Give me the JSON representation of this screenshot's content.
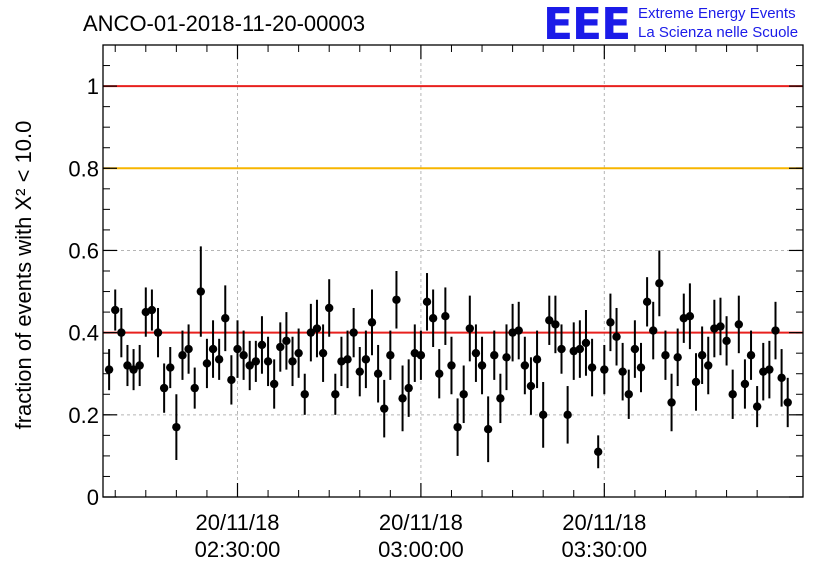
{
  "header": {
    "run_id": "ANCO-01-2018-11-20-00003"
  },
  "logo": {
    "mark": "EEE",
    "line1": "Extreme Energy Events",
    "line2": "La Scienza nelle Scuole",
    "color": "#1b1be8"
  },
  "chart_data": {
    "type": "scatter",
    "title": "ANCO-01-2018-11-20-00003",
    "ylabel": "fraction of events with X² < 10.0",
    "xlabel": "",
    "ylim": [
      0,
      1.1
    ],
    "xlim_minutes": [
      -22,
      92.5
    ],
    "x_unit": "minutes after 20/11/18 02:30:00",
    "yticks": [
      0,
      0.2,
      0.4,
      0.6,
      0.8,
      1
    ],
    "ytick_labels": [
      "0",
      "0.2",
      "0.4",
      "0.6",
      "0.8",
      "1"
    ],
    "xticks": [
      {
        "minutes": 0,
        "date": "20/11/18",
        "time": "02:30:00"
      },
      {
        "minutes": 30,
        "date": "20/11/18",
        "time": "03:00:00"
      },
      {
        "minutes": 60,
        "date": "20/11/18",
        "time": "03:30:00"
      }
    ],
    "grid": true,
    "reference_lines": [
      {
        "y": 1.0,
        "color": "#e8201e"
      },
      {
        "y": 0.8,
        "color": "#f7b500"
      },
      {
        "y": 0.4,
        "color": "#e8201e"
      }
    ],
    "marker_color": "#000000",
    "series": [
      {
        "name": "fraction",
        "x_step_minutes": 1,
        "x_start_minutes": -21,
        "values": [
          0.31,
          0.455,
          0.4,
          0.32,
          0.31,
          0.32,
          0.45,
          0.455,
          0.4,
          0.265,
          0.315,
          0.17,
          0.345,
          0.36,
          0.265,
          0.5,
          0.325,
          0.36,
          0.335,
          0.435,
          0.285,
          0.36,
          0.345,
          0.32,
          0.33,
          0.37,
          0.33,
          0.275,
          0.365,
          0.38,
          0.33,
          0.35,
          0.25,
          0.4,
          0.41,
          0.35,
          0.46,
          0.25,
          0.33,
          0.335,
          0.4,
          0.305,
          0.335,
          0.425,
          0.3,
          0.215,
          0.345,
          0.48,
          0.24,
          0.265,
          0.35,
          0.345,
          0.475,
          0.435,
          0.3,
          0.44,
          0.32,
          0.17,
          0.25,
          0.41,
          0.35,
          0.32,
          0.165,
          0.345,
          0.24,
          0.34,
          0.4,
          0.405,
          0.32,
          0.27,
          0.335,
          0.2,
          0.43,
          0.42,
          0.36,
          0.2,
          0.355,
          0.36,
          0.375,
          0.315,
          0.11,
          0.31,
          0.425,
          0.39,
          0.305,
          0.25,
          0.36,
          0.315,
          0.475,
          0.405,
          0.52,
          0.345,
          0.23,
          0.34,
          0.435,
          0.44,
          0.28,
          0.345,
          0.32,
          0.41,
          0.415,
          0.38,
          0.25,
          0.42,
          0.275,
          0.345,
          0.22,
          0.305,
          0.31,
          0.405,
          0.29,
          0.23
        ],
        "errors": [
          0.05,
          0.05,
          0.06,
          0.05,
          0.05,
          0.05,
          0.06,
          0.05,
          0.06,
          0.06,
          0.05,
          0.08,
          0.06,
          0.06,
          0.05,
          0.11,
          0.06,
          0.07,
          0.05,
          0.08,
          0.06,
          0.07,
          0.06,
          0.06,
          0.05,
          0.07,
          0.06,
          0.06,
          0.06,
          0.07,
          0.06,
          0.06,
          0.05,
          0.07,
          0.07,
          0.07,
          0.07,
          0.05,
          0.06,
          0.07,
          0.06,
          0.06,
          0.07,
          0.08,
          0.07,
          0.07,
          0.06,
          0.07,
          0.08,
          0.07,
          0.07,
          0.06,
          0.07,
          0.07,
          0.06,
          0.07,
          0.07,
          0.07,
          0.07,
          0.08,
          0.07,
          0.07,
          0.08,
          0.06,
          0.06,
          0.08,
          0.07,
          0.07,
          0.07,
          0.07,
          0.07,
          0.08,
          0.06,
          0.07,
          0.06,
          0.07,
          0.07,
          0.07,
          0.08,
          0.07,
          0.04,
          0.06,
          0.07,
          0.07,
          0.07,
          0.06,
          0.07,
          0.06,
          0.06,
          0.07,
          0.08,
          0.06,
          0.07,
          0.07,
          0.06,
          0.08,
          0.07,
          0.07,
          0.07,
          0.07,
          0.07,
          0.06,
          0.06,
          0.07,
          0.06,
          0.06,
          0.05,
          0.07,
          0.07,
          0.07,
          0.07,
          0.06
        ]
      }
    ]
  }
}
